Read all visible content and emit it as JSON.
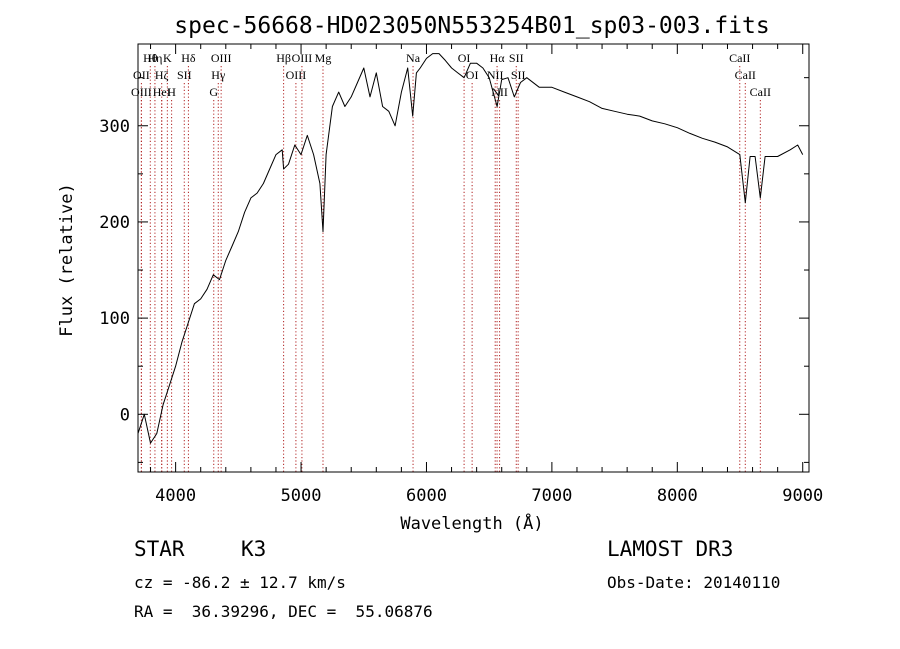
{
  "chart_data": {
    "type": "line",
    "title": "spec-56668-HD023050N553254B01_sp03-003.fits",
    "xlabel": "Wavelength (Å)",
    "ylabel": "Flux (relative)",
    "xlim": [
      3700,
      9050
    ],
    "ylim": [
      -60,
      385
    ],
    "xticks": [
      4000,
      5000,
      6000,
      7000,
      8000,
      9000
    ],
    "yticks": [
      0,
      100,
      200,
      300
    ],
    "grid": false,
    "series": [
      {
        "x": [
          3700,
          3750,
          3800,
          3850,
          3900,
          3950,
          4000,
          4050,
          4100,
          4150,
          4200,
          4250,
          4300,
          4350,
          4400,
          4450,
          4500,
          4550,
          4600,
          4650,
          4700,
          4750,
          4800,
          4850,
          4861,
          4900,
          4950,
          5000,
          5050,
          5100,
          5150,
          5175,
          5200,
          5250,
          5300,
          5350,
          5400,
          5450,
          5500,
          5550,
          5600,
          5650,
          5700,
          5750,
          5800,
          5850,
          5890,
          5920,
          5950,
          6000,
          6050,
          6100,
          6150,
          6200,
          6250,
          6300,
          6350,
          6400,
          6450,
          6500,
          6563,
          6600,
          6650,
          6700,
          6750,
          6800,
          6900,
          7000,
          7100,
          7200,
          7300,
          7400,
          7500,
          7600,
          7700,
          7800,
          7900,
          8000,
          8100,
          8200,
          8300,
          8400,
          8498,
          8542,
          8580,
          8620,
          8662,
          8700,
          8800,
          8900,
          8960,
          9000
        ],
        "y": [
          -20,
          0,
          -30,
          -20,
          10,
          30,
          50,
          75,
          95,
          115,
          120,
          130,
          145,
          140,
          160,
          175,
          190,
          210,
          225,
          230,
          240,
          255,
          270,
          275,
          255,
          260,
          280,
          270,
          290,
          270,
          240,
          190,
          270,
          320,
          335,
          320,
          330,
          345,
          360,
          330,
          355,
          320,
          315,
          300,
          335,
          360,
          310,
          355,
          360,
          370,
          375,
          375,
          368,
          360,
          355,
          350,
          365,
          365,
          360,
          350,
          320,
          348,
          350,
          330,
          345,
          350,
          340,
          340,
          335,
          330,
          325,
          318,
          315,
          312,
          310,
          305,
          302,
          298,
          292,
          287,
          283,
          278,
          270,
          220,
          268,
          268,
          225,
          268,
          268,
          275,
          280,
          270
        ]
      }
    ],
    "line_annotations": [
      {
        "labels": [
          "Hθ",
          "OII",
          "OIII"
        ],
        "wavelengths": [
          3798,
          3727,
          3727
        ]
      },
      {
        "labels": [
          "Hη",
          "Hζ",
          "HeI"
        ],
        "wavelengths": [
          3835,
          3889,
          3889
        ]
      },
      {
        "labels": [
          "K",
          "SII",
          "H"
        ],
        "wavelengths": [
          3934,
          4069,
          3968
        ]
      },
      {
        "labels": [
          "Hδ"
        ],
        "wavelengths": [
          4102
        ]
      },
      {
        "labels": [
          "OIII",
          "Hγ",
          "G"
        ],
        "wavelengths": [
          4363,
          4340,
          4304
        ]
      },
      {
        "labels": [
          "Hβ"
        ],
        "wavelengths": [
          4861
        ]
      },
      {
        "labels": [
          "OIII",
          "OIII"
        ],
        "wavelengths": [
          5007,
          4959
        ]
      },
      {
        "labels": [
          "Mg"
        ],
        "wavelengths": [
          5175
        ]
      },
      {
        "labels": [
          "Na"
        ],
        "wavelengths": [
          5893
        ]
      },
      {
        "labels": [
          "OI",
          "OI"
        ],
        "wavelengths": [
          6300,
          6364
        ]
      },
      {
        "labels": [
          "Hα",
          "NII",
          "NII"
        ],
        "wavelengths": [
          6563,
          6548,
          6583
        ]
      },
      {
        "labels": [
          "SII",
          "SII"
        ],
        "wavelengths": [
          6716,
          6731
        ]
      },
      {
        "labels": [
          "CaII",
          "CaII",
          "CaII"
        ],
        "wavelengths": [
          8498,
          8542,
          8662
        ]
      }
    ]
  },
  "info": {
    "object_type": "STAR",
    "subclass": "K3",
    "redshift_line": "cz = -86.2 ± 12.7 km/s",
    "coords_line": "RA =  36.39296, DEC =  55.06876",
    "survey": "LAMOST DR3",
    "obs_date": "Obs-Date: 20140110"
  }
}
